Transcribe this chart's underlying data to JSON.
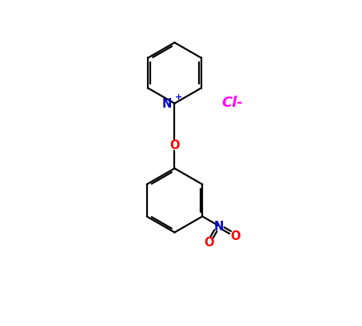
{
  "background_color": "#ffffff",
  "line_color": "#000000",
  "N_color": "#0000cc",
  "O_color": "#ff0000",
  "Cl_color": "#ff00ff",
  "line_width": 1.6,
  "dbo": 0.06,
  "figsize": [
    4.53,
    4.1
  ],
  "dpi": 100,
  "xlim": [
    0,
    10
  ],
  "ylim": [
    0,
    10
  ]
}
